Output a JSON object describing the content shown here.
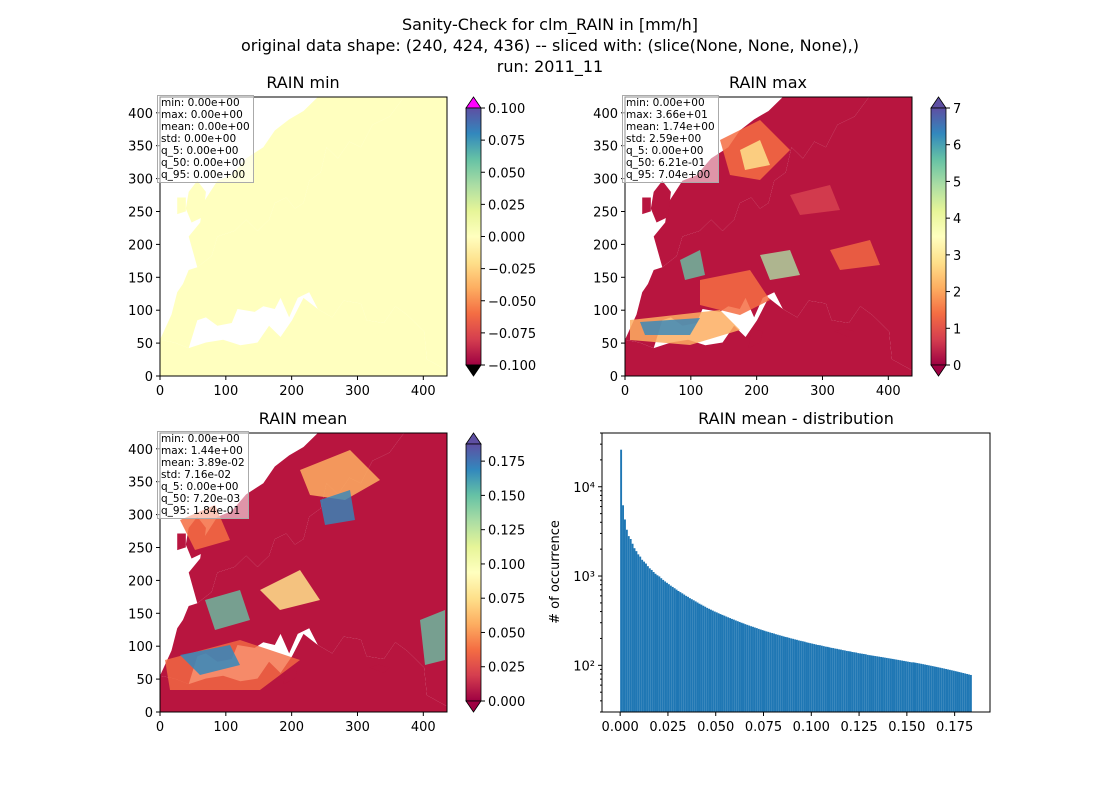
{
  "figure": {
    "title_lines": [
      "Sanity-Check for clm_RAIN in [mm/h]",
      "original data shape: (240, 424, 436) -- sliced with: (slice(None, None, None),)",
      "run: 2011_11"
    ]
  },
  "chart_data": [
    {
      "type": "heatmap",
      "title": "RAIN min",
      "xlim": [
        0,
        436
      ],
      "ylim": [
        0,
        424
      ],
      "x_ticks": [
        0,
        100,
        200,
        300,
        400
      ],
      "y_ticks": [
        0,
        50,
        100,
        150,
        200,
        250,
        300,
        350,
        400
      ],
      "colormap": "Spectral",
      "color_range": [
        -0.1,
        0.1
      ],
      "colorbar_ticks": [
        "0.100",
        "0.075",
        "0.050",
        "0.025",
        "0.000",
        "−0.025",
        "−0.050",
        "−0.075",
        "−0.100"
      ],
      "colorbar_extend": "both",
      "field_character": "uniform",
      "stats": [
        "min: 0.00e+00",
        "max: 0.00e+00",
        "mean: 0.00e+00",
        "std: 0.00e+00",
        "q_5: 0.00e+00",
        "q_50: 0.00e+00",
        "q_95: 0.00e+00"
      ]
    },
    {
      "type": "heatmap",
      "title": "RAIN max",
      "xlim": [
        0,
        436
      ],
      "ylim": [
        0,
        424
      ],
      "x_ticks": [
        0,
        100,
        200,
        300,
        400
      ],
      "y_ticks": [
        0,
        50,
        100,
        150,
        200,
        250,
        300,
        350,
        400
      ],
      "colormap": "Spectral",
      "color_range": [
        0,
        7
      ],
      "colorbar_ticks": [
        "7",
        "6",
        "5",
        "4",
        "3",
        "2",
        "1",
        "0"
      ],
      "colorbar_extend": "both",
      "field_character": "max",
      "stats": [
        "min: 0.00e+00",
        "max: 3.66e+01",
        "mean: 1.74e+00",
        "std: 2.59e+00",
        "q_5: 0.00e+00",
        "q_50: 6.21e-01",
        "q_95: 7.04e+00"
      ]
    },
    {
      "type": "heatmap",
      "title": "RAIN mean",
      "xlim": [
        0,
        436
      ],
      "ylim": [
        0,
        424
      ],
      "x_ticks": [
        0,
        100,
        200,
        300,
        400
      ],
      "y_ticks": [
        0,
        50,
        100,
        150,
        200,
        250,
        300,
        350,
        400
      ],
      "colormap": "Spectral",
      "color_range": [
        0,
        0.1875
      ],
      "colorbar_ticks": [
        "0.175",
        "0.150",
        "0.125",
        "0.100",
        "0.075",
        "0.050",
        "0.025",
        "0.000"
      ],
      "colorbar_extend": "both",
      "field_character": "mean",
      "stats": [
        "min: 0.00e+00",
        "max: 1.44e+00",
        "mean: 3.89e-02",
        "std: 7.16e-02",
        "q_5: 0.00e+00",
        "q_50: 7.20e-03",
        "q_95: 1.84e-01"
      ]
    },
    {
      "type": "bar",
      "title": "RAIN mean - distribution",
      "ylabel": "# of occurrence",
      "xlabel": "",
      "y_scale": "log",
      "xlim": [
        -0.0095,
        0.1935
      ],
      "ylim": [
        30,
        40000
      ],
      "x_ticks": [
        "0.000",
        "0.025",
        "0.050",
        "0.075",
        "0.100",
        "0.125",
        "0.150",
        "0.175"
      ],
      "y_ticks": [
        {
          "value": 100,
          "label": "10²"
        },
        {
          "value": 1000,
          "label": "10³"
        },
        {
          "value": 10000,
          "label": "10⁴"
        }
      ],
      "bin_range": [
        0,
        0.184
      ],
      "bins": 184,
      "color": "#1f77b4",
      "values": [
        26000,
        6200,
        4300,
        3300,
        2800,
        2600,
        2300,
        2050,
        1900,
        1750,
        1650,
        1520,
        1450,
        1380,
        1290,
        1220,
        1170,
        1110,
        1060,
        1020,
        990,
        945,
        905,
        870,
        840,
        810,
        780,
        755,
        730,
        705,
        680,
        660,
        640,
        620,
        600,
        585,
        565,
        550,
        535,
        520,
        505,
        490,
        478,
        465,
        453,
        440,
        430,
        420,
        410,
        400,
        392,
        383,
        375,
        367,
        360,
        352,
        345,
        338,
        331,
        325,
        318,
        312,
        306,
        300,
        295,
        289,
        284,
        279,
        274,
        270,
        265,
        261,
        256,
        252,
        248,
        244,
        240,
        237,
        233,
        230,
        227,
        223,
        220,
        217,
        214,
        211,
        208,
        206,
        203,
        200,
        198,
        195,
        193,
        190,
        188,
        186,
        184,
        181,
        179,
        177,
        175,
        173,
        171,
        169,
        168,
        166,
        164,
        162,
        161,
        159,
        157,
        156,
        154,
        153,
        151,
        150,
        148,
        147,
        145,
        144,
        143,
        141,
        140,
        139,
        137,
        136,
        135,
        134,
        133,
        131,
        130,
        129,
        128,
        127,
        126,
        125,
        124,
        123,
        122,
        121,
        120,
        119,
        118,
        117,
        116,
        115,
        114,
        113,
        112,
        111,
        110,
        109,
        108,
        108,
        107,
        106,
        105,
        104,
        103,
        102,
        101,
        100,
        99,
        98,
        97,
        96,
        95,
        94,
        93,
        92,
        91,
        90,
        89,
        88,
        87,
        86,
        85,
        84,
        83,
        82,
        81,
        80,
        79,
        78
      ]
    }
  ]
}
